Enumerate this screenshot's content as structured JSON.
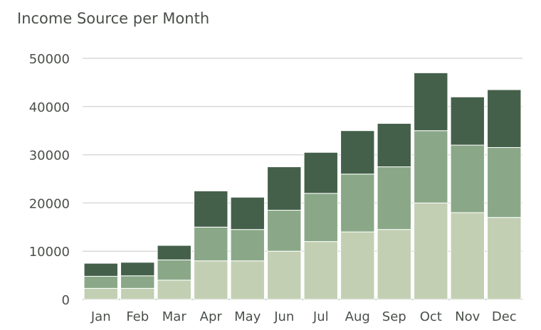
{
  "chart_data": {
    "type": "bar",
    "stacked": true,
    "title": "Income Source per Month",
    "xlabel": "",
    "ylabel": "",
    "categories": [
      "Jan",
      "Feb",
      "Mar",
      "Apr",
      "May",
      "Jun",
      "Jul",
      "Aug",
      "Sep",
      "Oct",
      "Nov",
      "Dec"
    ],
    "series": [
      {
        "color": "#c2cfb2",
        "values": [
          2300,
          2300,
          4000,
          8000,
          8000,
          10000,
          12000,
          14000,
          14500,
          20000,
          18000,
          17000
        ]
      },
      {
        "color": "#8aa888",
        "values": [
          2500,
          2600,
          4200,
          7000,
          6500,
          8500,
          10000,
          12000,
          13000,
          15000,
          14000,
          14500
        ]
      },
      {
        "color": "#44604a",
        "values": [
          2700,
          2800,
          3000,
          7500,
          6700,
          9000,
          8500,
          9000,
          9000,
          12000,
          10000,
          12000
        ]
      }
    ],
    "ylim": [
      0,
      50000
    ],
    "yticks": [
      "0",
      "10000",
      "20000",
      "30000",
      "40000",
      "50000"
    ],
    "grid": true,
    "legend": "none"
  }
}
